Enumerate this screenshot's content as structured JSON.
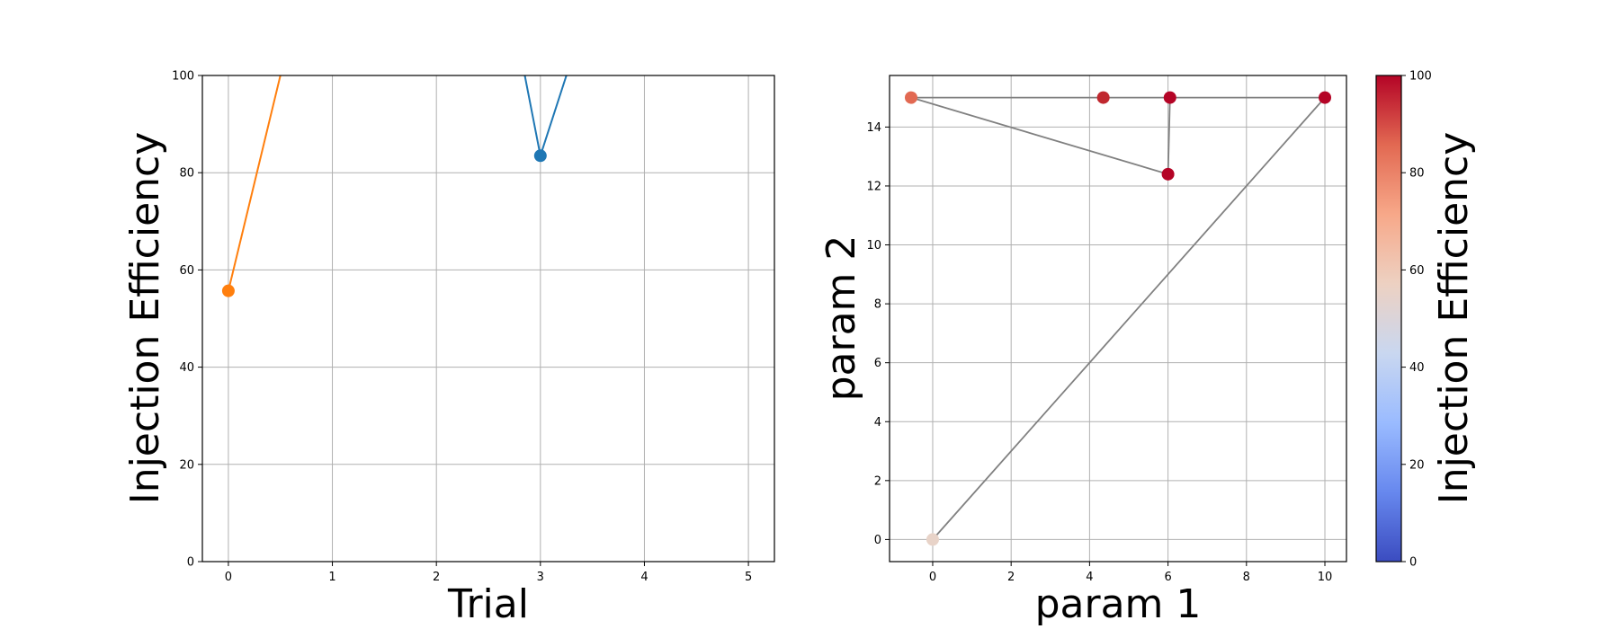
{
  "chart_data": [
    {
      "type": "line",
      "xlabel": "Trial",
      "ylabel": "Injection Efficiency",
      "xlim": [
        -0.25,
        5.25
      ],
      "ylim": [
        0,
        100
      ],
      "xticks": [
        "0",
        "1",
        "2",
        "3",
        "4",
        "5"
      ],
      "yticks": [
        "0",
        "20",
        "40",
        "60",
        "80",
        "100"
      ],
      "grid": true,
      "series": [
        {
          "color": "#ff7f0e",
          "x": [
            0,
            0.5
          ],
          "y": [
            55.7,
            100
          ],
          "marker_x": [
            0
          ],
          "marker_y": [
            55.7
          ]
        },
        {
          "color": "#1f77b4",
          "x": [
            2.85,
            3,
            3.25
          ],
          "y": [
            100,
            83.5,
            100
          ],
          "marker_x": [
            3
          ],
          "marker_y": [
            83.5
          ]
        }
      ]
    },
    {
      "type": "scatter",
      "xlabel": "param 1",
      "ylabel": "param 2",
      "xlim": [
        -1.1,
        10.55
      ],
      "ylim": [
        -0.75,
        15.75
      ],
      "xticks": [
        "0",
        "2",
        "4",
        "6",
        "8",
        "10"
      ],
      "yticks": [
        "0",
        "2",
        "4",
        "6",
        "8",
        "10",
        "12",
        "14"
      ],
      "grid": true,
      "path_color": "#808080",
      "points": [
        {
          "x": 0,
          "y": 0,
          "value": 55.7,
          "color": "#e8d3c8"
        },
        {
          "x": 10,
          "y": 15,
          "value": 100,
          "color": "#b40426"
        },
        {
          "x": -0.55,
          "y": 15,
          "value": 83.5,
          "color": "#e26952"
        },
        {
          "x": 6,
          "y": 12.4,
          "value": 100,
          "color": "#b40426"
        },
        {
          "x": 6.05,
          "y": 15,
          "value": 100,
          "color": "#b40426"
        },
        {
          "x": 4.35,
          "y": 15,
          "value": 96,
          "color": "#c0282f"
        }
      ],
      "path_order": [
        0,
        1,
        2,
        3,
        4,
        5
      ],
      "colorbar": {
        "label": "Injection Efficiency",
        "range": [
          0,
          100
        ],
        "ticks": [
          "0",
          "20",
          "40",
          "60",
          "80",
          "100"
        ],
        "colormap": "coolwarm",
        "stops": [
          "#3b4cc0",
          "#6788ee",
          "#9abbff",
          "#c9d7f0",
          "#edd1c2",
          "#f7a889",
          "#e26952",
          "#b40426"
        ]
      }
    }
  ]
}
